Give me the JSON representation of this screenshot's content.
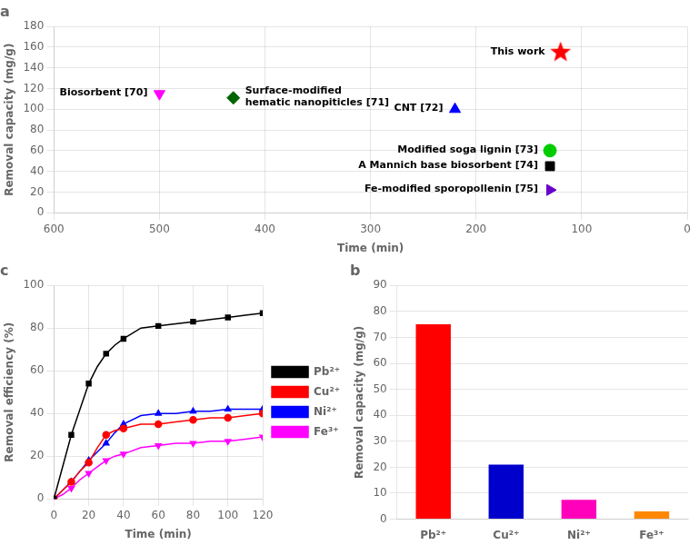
{
  "chart_data": [
    {
      "type": "scatter",
      "title": "a",
      "xlabel": "Time (min)",
      "ylabel": "Removal capacity (mg/g)",
      "xlim": [
        600,
        0
      ],
      "ylim": [
        0,
        180
      ],
      "xticks": [
        600,
        500,
        400,
        300,
        200,
        100,
        0
      ],
      "yticks": [
        0,
        20,
        40,
        60,
        80,
        100,
        120,
        140,
        160,
        180
      ],
      "grid": true,
      "points": [
        {
          "x": 500,
          "y": 115,
          "label": "Biosorbent [70]",
          "color": "#FF00FF",
          "marker": "triangle_down"
        },
        {
          "x": 430,
          "y": 111,
          "label": "Surface-modified\nhematic nanopiticles [71]",
          "color": "#006400",
          "marker": "diamond"
        },
        {
          "x": 220,
          "y": 100,
          "label": "CNT [72]",
          "color": "#0000FF",
          "marker": "triangle_up"
        },
        {
          "x": 130,
          "y": 60,
          "label": "Modified soga lignin [73]",
          "color": "#00CC00",
          "marker": "circle"
        },
        {
          "x": 130,
          "y": 45,
          "label": "A Mannich base biosorbent [74]",
          "color": "#000000",
          "marker": "square"
        },
        {
          "x": 130,
          "y": 22,
          "label": "Fe-modified sporopollenin [75]",
          "color": "#6600CC",
          "marker": "triangle_right"
        },
        {
          "x": 120,
          "y": 155,
          "label": "This work",
          "color": "#FF0000",
          "marker": "star"
        }
      ]
    },
    {
      "type": "bar",
      "title": "b",
      "ylabel": "Removal capacity (mg/g)",
      "categories": [
        "Pb²⁺",
        "Cu²⁺",
        "Ni²⁺",
        "Fe³⁺"
      ],
      "values": [
        75,
        21,
        7.5,
        3.0
      ],
      "colors": [
        "#FF0000",
        "#0000CC",
        "#FF00BB",
        "#FF8800"
      ],
      "ylim": [
        0,
        90
      ],
      "yticks": [
        0,
        10,
        20,
        30,
        40,
        50,
        60,
        70,
        80,
        90
      ],
      "grid": "y"
    },
    {
      "type": "line",
      "title": "c",
      "xlabel": "Time (min)",
      "ylabel": "Removal efficiency (%)",
      "x": [
        0,
        5,
        10,
        15,
        20,
        25,
        30,
        35,
        40,
        50,
        60,
        70,
        80,
        90,
        100,
        110,
        120
      ],
      "series": [
        {
          "name": "Pb²⁺",
          "color": "#000000",
          "marker": "square",
          "values": [
            0,
            15,
            30,
            42,
            54,
            62,
            68,
            72,
            75,
            80,
            81,
            82,
            83,
            84,
            85,
            86,
            87
          ]
        },
        {
          "name": "Cu²⁺",
          "color": "#FF0000",
          "marker": "circle",
          "values": [
            0,
            4,
            8,
            13,
            17,
            24,
            30,
            32,
            33,
            35,
            35,
            36,
            37,
            38,
            38,
            39,
            40
          ]
        },
        {
          "name": "Ni²⁺",
          "color": "#0000FF",
          "marker": "triangle_up",
          "values": [
            0,
            4,
            8,
            13,
            18,
            22,
            26,
            31,
            35,
            39,
            40,
            40,
            41,
            41,
            42,
            42,
            42
          ]
        },
        {
          "name": "Fe³⁺",
          "color": "#FF00FF",
          "marker": "triangle_down",
          "values": [
            0,
            2,
            5,
            9,
            12,
            15,
            18,
            20,
            21,
            24,
            25,
            26,
            26,
            27,
            27,
            28,
            29
          ]
        }
      ],
      "xlim": [
        0,
        120
      ],
      "ylim": [
        0,
        100
      ],
      "xticks": [
        0,
        20,
        40,
        60,
        80,
        100,
        120
      ],
      "yticks": [
        0,
        20,
        40,
        60,
        80,
        100
      ],
      "grid": true,
      "legend": "right"
    }
  ]
}
